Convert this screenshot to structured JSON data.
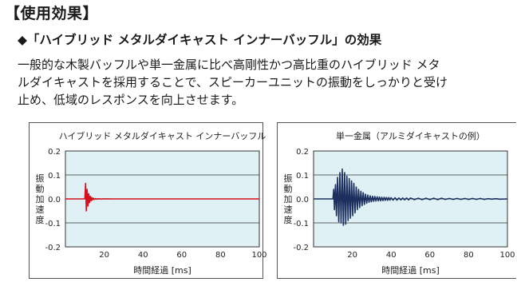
{
  "section_heading": "【使用効果】",
  "subheading": "◆「ハイブリッド メタルダイキャスト インナーバッフル」の効果",
  "body_lines": [
    "一般的な木製バッフルや単一金属に比べ高剛性かつ高比重のハイブリッド メタ",
    "ルダイキャストを採用することで、スピーカーユニットの振動をしっかりと受け",
    "止め、低域のレスポンスを向上させます。"
  ],
  "chart_data": [
    {
      "type": "line",
      "title": "ハイブリッド メタルダイキャスト インナーバッフル",
      "xlabel": "時間経過 [ms]",
      "ylabel": "振動加速度",
      "xlim": [
        0,
        100
      ],
      "ylim": [
        -0.2,
        0.2
      ],
      "x_ticks": [
        20,
        40,
        60,
        80,
        100
      ],
      "y_ticks": [
        "0.2",
        "0.1",
        "0.0",
        "-0.1",
        "-0.2"
      ],
      "grid": "horizontal",
      "line_color": "#d40f1e",
      "plot_background": "#dff1f5",
      "series": [
        {
          "x": [
            0,
            10,
            10.4,
            10.8,
            11.2,
            11.6,
            12,
            12.4,
            12.8,
            13.2,
            13.6,
            14,
            14.5,
            15,
            15.5,
            16,
            17,
            18,
            20,
            25,
            100
          ],
          "y": [
            0,
            0,
            0.065,
            -0.05,
            0.04,
            -0.03,
            0.022,
            -0.016,
            0.011,
            -0.008,
            0.006,
            -0.004,
            0.003,
            -0.002,
            0.0015,
            -0.001,
            0.0006,
            -0.0003,
            0.0002,
            0,
            0
          ]
        }
      ]
    },
    {
      "type": "line",
      "title": "単一金属（アルミダイキャストの例）",
      "xlabel": "時間経過 [ms]",
      "ylabel": "振動加速度",
      "xlim": [
        0,
        100
      ],
      "ylim": [
        -0.2,
        0.2
      ],
      "x_ticks": [
        20,
        40,
        60,
        80,
        100
      ],
      "y_ticks": [
        "0.2",
        "0.1",
        "0.0",
        "-0.1",
        "-0.2"
      ],
      "grid": "horizontal",
      "line_color": "#1c2f5e",
      "plot_background": "#dff1f5",
      "series": [
        {
          "x": [
            0,
            10,
            10.4,
            10.8,
            11.3,
            11.8,
            12.4,
            13,
            13.6,
            14.2,
            14.8,
            15.4,
            16,
            16.6,
            17.2,
            17.8,
            18.4,
            19,
            19.6,
            20.2,
            20.8,
            21.4,
            22,
            22.6,
            23.2,
            23.8,
            24.4,
            25,
            25.6,
            26.2,
            26.8,
            27.4,
            28,
            28.6,
            29.2,
            29.8,
            30.4,
            31,
            31.6,
            32.2,
            32.8,
            33.4,
            34,
            34.6,
            35.2,
            35.8,
            36.4,
            37,
            37.6,
            38.2,
            38.8,
            39.4,
            40,
            41,
            42,
            43,
            44,
            45,
            46,
            47,
            48,
            49,
            50,
            52,
            54,
            56,
            58,
            60,
            62,
            64,
            66,
            68,
            70,
            72,
            74,
            76,
            78,
            80,
            82,
            84,
            86,
            88,
            90,
            92,
            94,
            96,
            100
          ],
          "y": [
            0,
            0,
            0.04,
            -0.045,
            0.06,
            -0.07,
            0.09,
            -0.095,
            0.11,
            -0.1,
            0.125,
            -0.11,
            0.11,
            -0.105,
            0.095,
            -0.09,
            0.085,
            -0.08,
            0.075,
            -0.07,
            0.065,
            -0.058,
            0.05,
            -0.045,
            0.04,
            -0.036,
            0.032,
            -0.028,
            0.026,
            -0.023,
            0.02,
            -0.018,
            0.016,
            -0.014,
            0.013,
            -0.012,
            0.011,
            -0.01,
            0.01,
            -0.009,
            0.009,
            -0.008,
            0.008,
            -0.008,
            0.007,
            -0.007,
            0.007,
            -0.006,
            0.006,
            -0.006,
            0.006,
            -0.005,
            0.005,
            -0.005,
            0.005,
            -0.005,
            0.004,
            -0.004,
            0.004,
            -0.004,
            0.004,
            -0.004,
            0.004,
            -0.003,
            0.003,
            -0.003,
            0.003,
            -0.003,
            0.003,
            -0.003,
            0.003,
            -0.002,
            0.002,
            -0.002,
            0.002,
            -0.002,
            0.002,
            -0.002,
            0.002,
            -0.002,
            0.002,
            -0.002,
            0.001,
            -0.001,
            0.001,
            -0.001,
            0
          ]
        }
      ]
    }
  ]
}
